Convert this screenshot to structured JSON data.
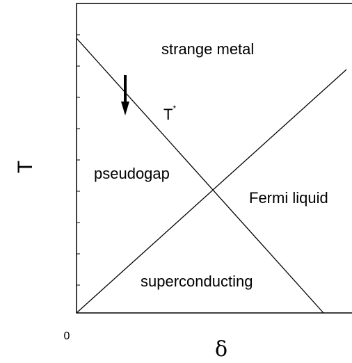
{
  "regions": {
    "strange_metal": "strange metal",
    "pseudogap": "pseudogap",
    "fermi_liquid": "Fermi liquid",
    "superconducting": "superconducting"
  },
  "crossover": {
    "base": "T",
    "sup": "*"
  },
  "axes": {
    "y_label": "T",
    "x_label": "δ",
    "origin": "0"
  }
}
